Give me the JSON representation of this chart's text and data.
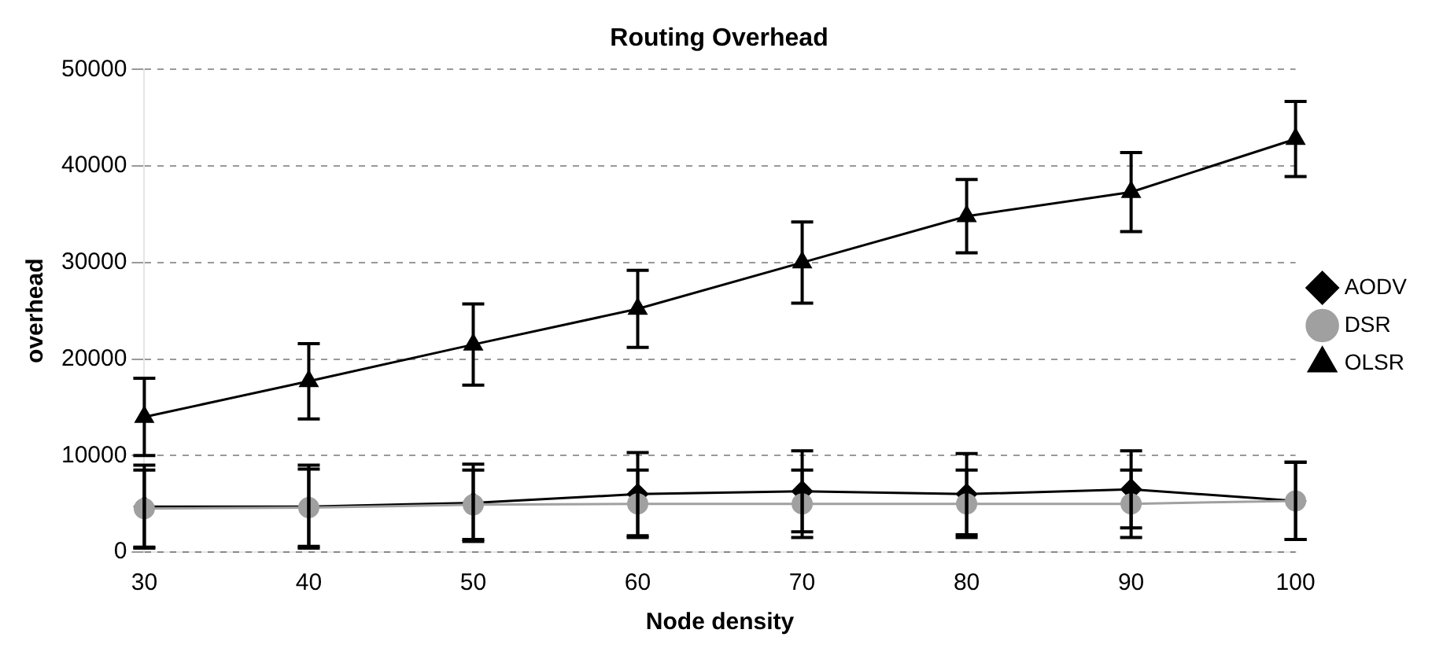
{
  "chart_data": {
    "type": "line",
    "title": "Routing Overhead",
    "xlabel": "Node density",
    "ylabel": "overhead",
    "categories": [
      "30",
      "40",
      "50",
      "60",
      "70",
      "80",
      "90",
      "100"
    ],
    "series": [
      {
        "name": "AODV",
        "color": "#000000",
        "marker": "diamond",
        "values": [
          4700,
          4700,
          5100,
          6000,
          6300,
          6000,
          6500,
          5300
        ],
        "errors": [
          4300,
          4300,
          4000,
          4300,
          4200,
          4200,
          4000,
          4000
        ]
      },
      {
        "name": "DSR",
        "color": "#a0a0a0",
        "marker": "circle",
        "values": [
          4500,
          4600,
          4900,
          5000,
          5000,
          5000,
          5000,
          5300
        ],
        "errors": [
          4000,
          4000,
          3600,
          3500,
          3500,
          3500,
          3500,
          4000
        ]
      },
      {
        "name": "OLSR",
        "color": "#000000",
        "marker": "triangle",
        "values": [
          14000,
          17700,
          21500,
          25200,
          30000,
          34800,
          37300,
          42800
        ],
        "errors": [
          4000,
          3900,
          4200,
          4000,
          4200,
          3800,
          4100,
          3900
        ]
      }
    ],
    "ylim": [
      0,
      50000
    ],
    "yticks": [
      0,
      10000,
      20000,
      30000,
      40000,
      50000
    ],
    "grid": "y",
    "legend": "right"
  }
}
